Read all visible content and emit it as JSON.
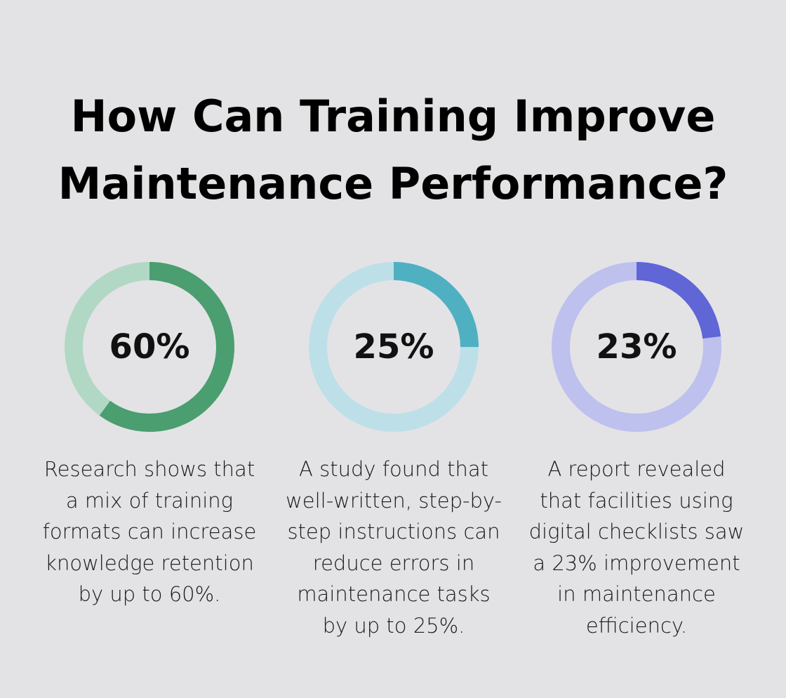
{
  "header": {
    "title_line1": "How Can Training Improve",
    "title_line2": "Maintenance Performance?"
  },
  "chart_data": {
    "type": "pie",
    "variant": "donut",
    "items": [
      {
        "value": 60,
        "label": "60%",
        "description_lines": [
          "Research shows that",
          "a mix of training",
          "formats can increase",
          "knowledge retention",
          "by up to 60%."
        ],
        "color_fill": "#4a9e6f",
        "color_track": "#b1d8c4"
      },
      {
        "value": 25,
        "label": "25%",
        "description_lines": [
          "A study found that",
          "well-written, step-by-",
          "step instructions can",
          "reduce errors in",
          "maintenance tasks",
          "by up to 25%."
        ],
        "color_fill": "#4fb0c2",
        "color_track": "#bde0e8"
      },
      {
        "value": 23,
        "label": "23%",
        "description_lines": [
          "A report revealed",
          "that facilities using",
          "digital checklists saw",
          "a 23% improvement",
          "in maintenance",
          "efficiency."
        ],
        "color_fill": "#6066d6",
        "color_track": "#bec0ee"
      }
    ]
  }
}
